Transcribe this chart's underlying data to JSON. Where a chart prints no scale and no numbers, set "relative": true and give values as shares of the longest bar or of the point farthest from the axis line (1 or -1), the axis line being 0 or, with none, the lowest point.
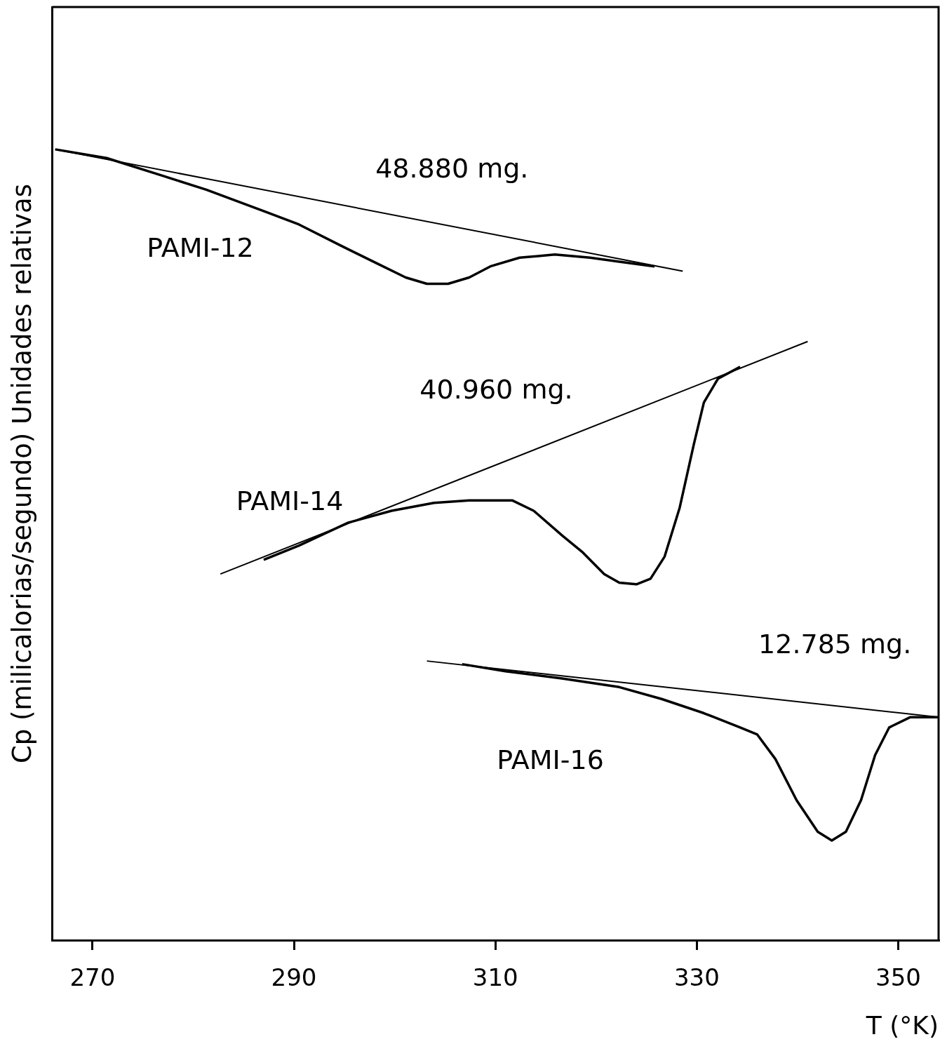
{
  "chart_data": {
    "type": "line",
    "relative": true,
    "xlabel": "T (°K)",
    "ylabel": "Cp (milicalorias/segundo) Unidades relativas",
    "xlim": [
      266,
      354
    ],
    "xticks": [
      270,
      290,
      310,
      330,
      350
    ],
    "tick_labels": "x",
    "grid": false,
    "legend": false,
    "marker": "none",
    "line_style": "solid",
    "annotations": [
      "48.880 mg.",
      "40.960 mg.",
      "12.785 mg."
    ],
    "series": [
      {
        "name": "PAMI-12",
        "color": "#000000",
        "x": [
          266.3,
          271.4,
          277.1,
          281.3,
          287.0,
          290.5,
          294.7,
          298.2,
          301.1,
          303.2,
          305.3,
          307.4,
          309.5,
          312.4,
          315.9,
          319.4,
          322.3,
          325.8
        ],
        "values": [
          1.0,
          0.989,
          0.966,
          0.949,
          0.922,
          0.905,
          0.878,
          0.856,
          0.838,
          0.83,
          0.83,
          0.838,
          0.852,
          0.863,
          0.867,
          0.863,
          0.858,
          0.852
        ]
      },
      {
        "color": "#000000",
        "x": [
          266.3,
          328.6
        ],
        "values": [
          1.0,
          0.846
        ]
      },
      {
        "name": "PAMI-14",
        "color": "#000000",
        "x": [
          287.0,
          290.5,
          295.4,
          299.7,
          303.9,
          307.4,
          311.7,
          313.8,
          316.6,
          318.7,
          320.8,
          322.3,
          324.0,
          325.4,
          326.8,
          328.3,
          329.7,
          330.7,
          332.1,
          334.3
        ],
        "values": [
          0.481,
          0.499,
          0.528,
          0.543,
          0.553,
          0.556,
          0.556,
          0.543,
          0.512,
          0.49,
          0.463,
          0.452,
          0.45,
          0.457,
          0.485,
          0.547,
          0.627,
          0.68,
          0.71,
          0.725
        ]
      },
      {
        "color": "#000000",
        "x": [
          282.7,
          341.0
        ],
        "values": [
          0.463,
          0.757
        ]
      },
      {
        "name": "PAMI-16",
        "color": "#000000",
        "x": [
          306.7,
          311.0,
          316.6,
          322.3,
          326.5,
          330.7,
          334.3,
          336.0,
          337.8,
          339.9,
          342.0,
          343.4,
          344.8,
          346.3,
          347.7,
          349.1,
          351.2,
          354.0
        ],
        "values": [
          0.349,
          0.34,
          0.331,
          0.32,
          0.305,
          0.287,
          0.269,
          0.26,
          0.229,
          0.177,
          0.137,
          0.126,
          0.137,
          0.177,
          0.234,
          0.269,
          0.282,
          0.282
        ]
      },
      {
        "color": "#000000",
        "x": [
          303.2,
          354.0
        ],
        "values": [
          0.353,
          0.282
        ]
      }
    ]
  }
}
